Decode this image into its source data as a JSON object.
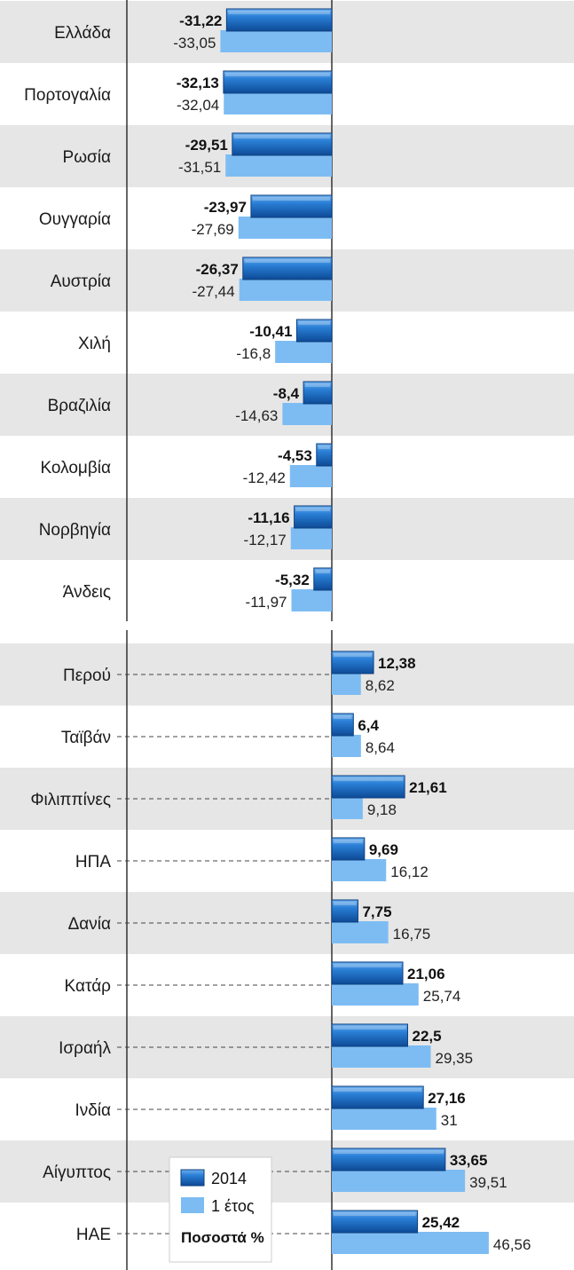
{
  "chart_data": {
    "type": "bar",
    "orientation": "horizontal",
    "unit": "Ποσοστά %",
    "colors": {
      "2014": "#1f6fc6",
      "1 έτος": "#7dbcf3",
      "band": "#e6e6e6"
    },
    "legend": {
      "placement": "bottom-left",
      "entries": [
        "2014",
        "1 έτος"
      ]
    },
    "groups": [
      {
        "name": "negative",
        "categories": [
          "Ελλάδα",
          "Πορτογαλία",
          "Ρωσία",
          "Ουγγαρία",
          "Αυστρία",
          "Χιλή",
          "Βραζιλία",
          "Κολομβία",
          "Νορβηγία",
          "Άνδεις"
        ],
        "series": [
          {
            "name": "2014",
            "values": [
              -31.22,
              -32.13,
              -29.51,
              -23.97,
              -26.37,
              -10.41,
              -8.4,
              -4.53,
              -11.16,
              -5.32
            ],
            "labels": [
              "-31,22",
              "-32,13",
              "-29,51",
              "-23,97",
              "-26,37",
              "-10,41",
              "-8,4",
              "-4,53",
              "-11,16",
              "-5,32"
            ]
          },
          {
            "name": "1 έτος",
            "values": [
              -33.05,
              -32.04,
              -31.51,
              -27.69,
              -27.44,
              -16.8,
              -14.63,
              -12.42,
              -12.17,
              -11.97
            ],
            "labels": [
              "-33,05",
              "-32,04",
              "-31,51",
              "-27,69",
              "-27,44",
              "-16,8",
              "-14,63",
              "-12,42",
              "-12,17",
              "-11,97"
            ]
          }
        ]
      },
      {
        "name": "positive",
        "categories": [
          "Περού",
          "Ταϊβάν",
          "Φιλιππίνες",
          "ΗΠΑ",
          "Δανία",
          "Κατάρ",
          "Ισραήλ",
          "Ινδία",
          "Αίγυπτος",
          "ΗΑΕ"
        ],
        "series": [
          {
            "name": "2014",
            "values": [
              12.38,
              6.4,
              21.61,
              9.69,
              7.75,
              21.06,
              22.5,
              27.16,
              33.65,
              25.42
            ],
            "labels": [
              "12,38",
              "6,4",
              "21,61",
              "9,69",
              "7,75",
              "21,06",
              "22,5",
              "27,16",
              "33,65",
              "25,42"
            ]
          },
          {
            "name": "1 έτος",
            "values": [
              8.62,
              8.64,
              9.18,
              16.12,
              16.75,
              25.74,
              29.35,
              31,
              39.51,
              46.56
            ],
            "labels": [
              "8,62",
              "8,64",
              "9,18",
              "16,12",
              "16,75",
              "25,74",
              "29,35",
              "31",
              "39,51",
              "46,56"
            ]
          }
        ]
      }
    ]
  }
}
